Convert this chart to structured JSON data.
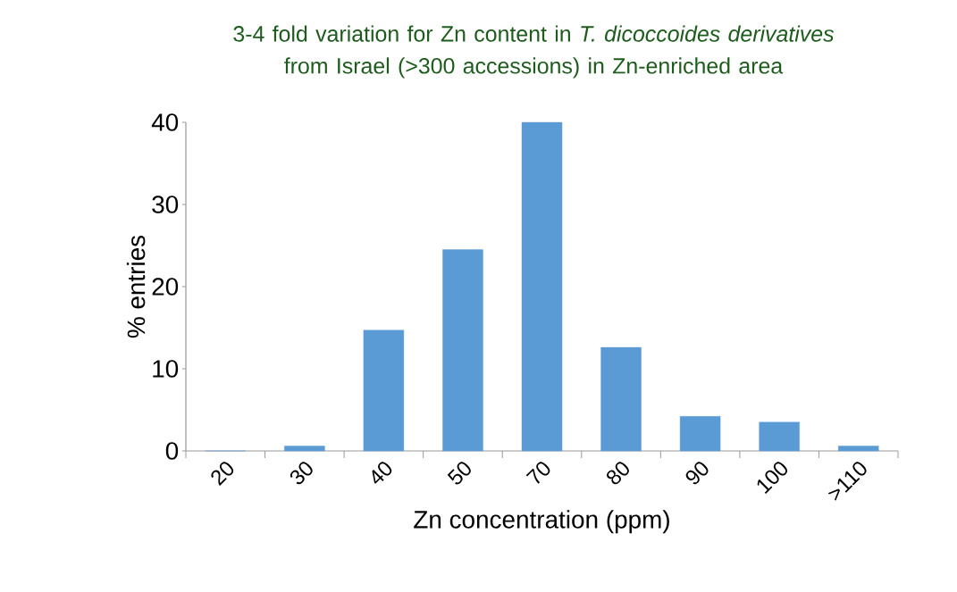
{
  "chart_data": {
    "type": "bar",
    "title": "3-4 fold variation for Zn content in *T. dicoccoides derivatives* from Israel (>300 accessions) in Zn-enriched area",
    "xlabel": "Zn concentration (ppm)",
    "ylabel": "% entries",
    "categories": [
      "20",
      "30",
      "40",
      "50",
      "70",
      "80",
      "90",
      "100",
      ">110"
    ],
    "values": [
      0,
      0.6,
      14.7,
      24.5,
      40,
      12.6,
      4.2,
      3.5,
      0.6
    ],
    "color": "#5b9bd5",
    "ylim": [
      0,
      40
    ],
    "yticks": [
      0,
      10,
      20,
      30,
      40
    ]
  }
}
